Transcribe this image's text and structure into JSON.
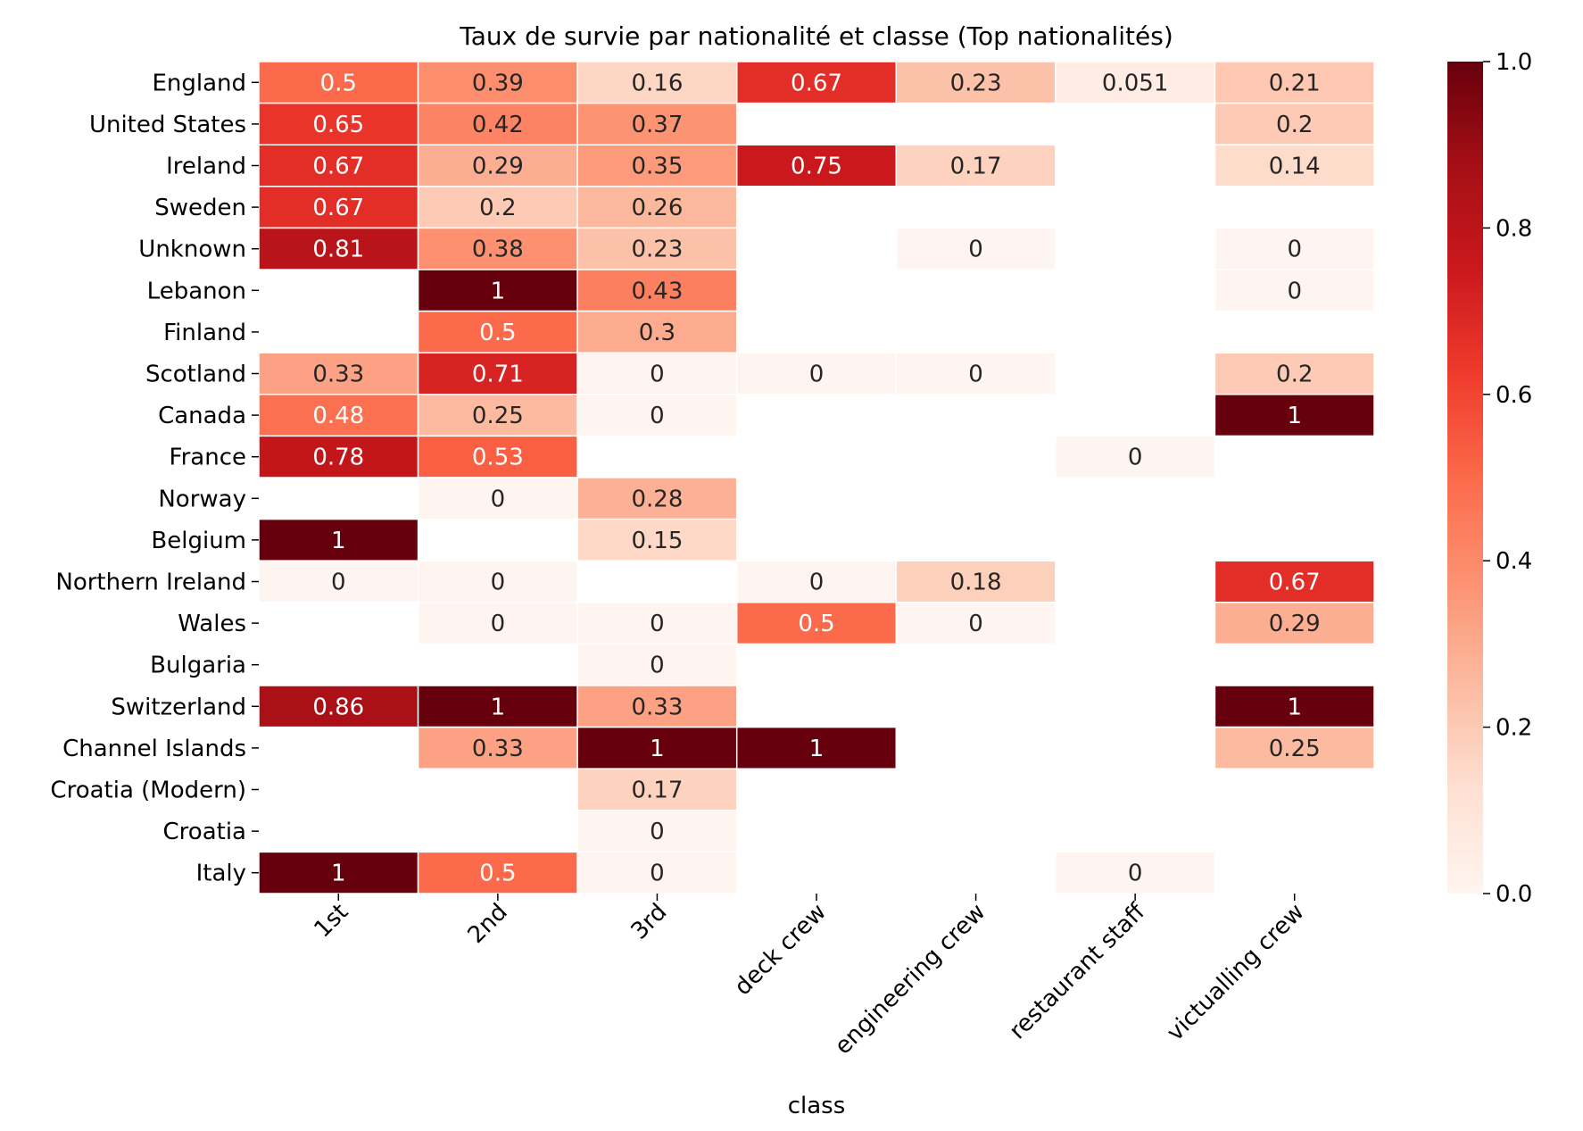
{
  "chart_data": {
    "type": "heatmap",
    "title": "Taux de survie par nationalité et classe (Top nationalités)",
    "xlabel": "class",
    "ylabel": "",
    "x_categories": [
      "1st",
      "2nd",
      "3rd",
      "deck crew",
      "engineering crew",
      "restaurant staff",
      "victualling crew"
    ],
    "y_categories": [
      "England",
      "United States",
      "Ireland",
      "Sweden",
      "Unknown",
      "Lebanon",
      "Finland",
      "Scotland",
      "Canada",
      "France",
      "Norway",
      "Belgium",
      "Northern Ireland",
      "Wales",
      "Bulgaria",
      "Switzerland",
      "Channel Islands",
      "Croatia (Modern)",
      "Croatia",
      "Italy"
    ],
    "values": [
      [
        0.5,
        0.39,
        0.16,
        0.67,
        0.23,
        0.051,
        0.21
      ],
      [
        0.65,
        0.42,
        0.37,
        null,
        null,
        null,
        0.2
      ],
      [
        0.67,
        0.29,
        0.35,
        0.75,
        0.17,
        null,
        0.14
      ],
      [
        0.67,
        0.2,
        0.26,
        null,
        null,
        null,
        null
      ],
      [
        0.81,
        0.38,
        0.23,
        null,
        0,
        null,
        0
      ],
      [
        null,
        1,
        0.43,
        null,
        null,
        null,
        0
      ],
      [
        null,
        0.5,
        0.3,
        null,
        null,
        null,
        null
      ],
      [
        0.33,
        0.71,
        0,
        0,
        0,
        null,
        0.2
      ],
      [
        0.48,
        0.25,
        0,
        null,
        null,
        null,
        1
      ],
      [
        0.78,
        0.53,
        null,
        null,
        null,
        0,
        null
      ],
      [
        null,
        0,
        0.28,
        null,
        null,
        null,
        null
      ],
      [
        1,
        null,
        0.15,
        null,
        null,
        null,
        null
      ],
      [
        0,
        0,
        null,
        0,
        0.18,
        null,
        0.67
      ],
      [
        null,
        0,
        0,
        0.5,
        0,
        null,
        0.29
      ],
      [
        null,
        null,
        0,
        null,
        null,
        null,
        null
      ],
      [
        0.86,
        1,
        0.33,
        null,
        null,
        null,
        1
      ],
      [
        null,
        0.33,
        1,
        1,
        null,
        null,
        0.25
      ],
      [
        null,
        null,
        0.17,
        null,
        null,
        null,
        null
      ],
      [
        null,
        null,
        0,
        null,
        null,
        null,
        null
      ],
      [
        1,
        0.5,
        0,
        null,
        null,
        0,
        null
      ]
    ],
    "value_range": [
      0.0,
      1.0
    ],
    "colormap": "Reds",
    "colormap_stops": [
      "#fff5f0",
      "#fee0d2",
      "#fcbba1",
      "#fc9272",
      "#fb6a4a",
      "#ef3b2c",
      "#cb181d",
      "#a50f15",
      "#67000d"
    ],
    "colorbar_ticks": [
      "0.0",
      "0.2",
      "0.4",
      "0.6",
      "0.8",
      "1.0"
    ],
    "legend": "colorbar-right",
    "grid": false
  }
}
